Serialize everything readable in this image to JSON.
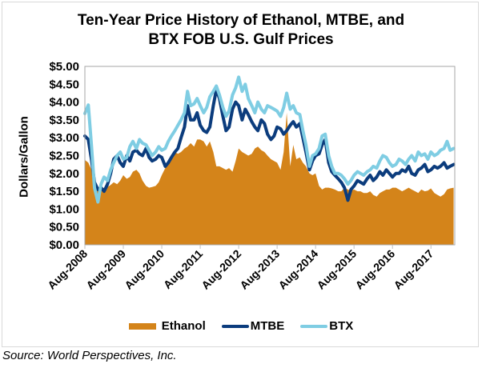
{
  "chart_data": {
    "type": "line",
    "title_lines": [
      "Ten-Year Price History of Ethanol, MTBE, and",
      "BTX FOB U.S. Gulf Prices"
    ],
    "title": "Ten-Year Price History of Ethanol, MTBE, and BTX FOB U.S. Gulf Prices",
    "xlabel": "",
    "ylabel": "Dollars/Gallon",
    "ylim": [
      0,
      5
    ],
    "xlim": [
      2008.58,
      2018.2
    ],
    "y_ticks": [
      "$0.00",
      "$0.50",
      "$1.00",
      "$1.50",
      "$2.00",
      "$2.50",
      "$3.00",
      "$3.50",
      "$4.00",
      "$4.50",
      "$5.00"
    ],
    "y_tick_values": [
      0,
      0.5,
      1.0,
      1.5,
      2.0,
      2.5,
      3.0,
      3.5,
      4.0,
      4.5,
      5.0
    ],
    "x_ticks": [
      "Aug-2008",
      "Aug-2009",
      "Aug-2010",
      "Aug-2011",
      "Aug-2012",
      "Aug-2013",
      "Aug-2014",
      "Aug-2015",
      "Aug-2016",
      "Aug-2017"
    ],
    "x_tick_values": [
      2008.58,
      2009.58,
      2010.58,
      2011.58,
      2012.58,
      2013.58,
      2014.58,
      2015.58,
      2016.58,
      2017.58
    ],
    "grid": false,
    "legend_position": "bottom",
    "colors": {
      "Ethanol": "#d4841a",
      "MTBE": "#0b3c7d",
      "BTX": "#7fcde3"
    },
    "series": [
      {
        "name": "Ethanol",
        "style": "area",
        "x": [
          2008.58,
          2008.67,
          2008.75,
          2008.83,
          2008.92,
          2009.0,
          2009.08,
          2009.17,
          2009.25,
          2009.33,
          2009.42,
          2009.5,
          2009.58,
          2009.67,
          2009.75,
          2009.83,
          2009.92,
          2010.0,
          2010.08,
          2010.17,
          2010.25,
          2010.33,
          2010.42,
          2010.5,
          2010.58,
          2010.67,
          2010.75,
          2010.83,
          2010.92,
          2011.0,
          2011.08,
          2011.17,
          2011.25,
          2011.33,
          2011.42,
          2011.5,
          2011.58,
          2011.67,
          2011.75,
          2011.83,
          2011.92,
          2012.0,
          2012.08,
          2012.17,
          2012.25,
          2012.33,
          2012.42,
          2012.5,
          2012.58,
          2012.67,
          2012.75,
          2012.83,
          2012.92,
          2013.0,
          2013.08,
          2013.17,
          2013.25,
          2013.33,
          2013.42,
          2013.5,
          2013.58,
          2013.67,
          2013.75,
          2013.83,
          2013.92,
          2014.0,
          2014.08,
          2014.17,
          2014.25,
          2014.33,
          2014.42,
          2014.5,
          2014.58,
          2014.67,
          2014.75,
          2014.83,
          2014.92,
          2015.0,
          2015.08,
          2015.17,
          2015.25,
          2015.33,
          2015.42,
          2015.5,
          2015.58,
          2015.67,
          2015.75,
          2015.83,
          2015.92,
          2016.0,
          2016.08,
          2016.17,
          2016.25,
          2016.33,
          2016.42,
          2016.5,
          2016.58,
          2016.67,
          2016.75,
          2016.83,
          2016.92,
          2017.0,
          2017.08,
          2017.17,
          2017.25,
          2017.33,
          2017.42,
          2017.5,
          2017.58,
          2017.67,
          2017.75,
          2017.83,
          2017.92,
          2018.0,
          2018.08,
          2018.17
        ],
        "values": [
          2.38,
          2.3,
          2.1,
          1.75,
          1.6,
          1.55,
          1.6,
          1.62,
          1.68,
          1.75,
          1.7,
          1.8,
          1.95,
          1.85,
          1.9,
          2.05,
          2.1,
          2.0,
          1.8,
          1.65,
          1.6,
          1.62,
          1.65,
          1.75,
          1.95,
          2.15,
          2.3,
          2.45,
          2.6,
          2.55,
          2.6,
          2.7,
          2.75,
          2.85,
          2.75,
          2.95,
          2.95,
          2.9,
          2.75,
          2.9,
          2.6,
          2.2,
          2.2,
          2.15,
          2.1,
          2.15,
          2.05,
          2.35,
          2.7,
          2.6,
          2.55,
          2.5,
          2.55,
          2.7,
          2.75,
          2.65,
          2.6,
          2.5,
          2.4,
          2.35,
          2.3,
          2.1,
          2.6,
          3.7,
          2.2,
          2.8,
          2.4,
          2.45,
          2.3,
          2.2,
          2.0,
          1.95,
          2.0,
          1.65,
          1.55,
          1.6,
          1.6,
          1.58,
          1.55,
          1.5,
          1.5,
          1.6,
          1.55,
          1.52,
          1.55,
          1.5,
          1.5,
          1.45,
          1.45,
          1.5,
          1.4,
          1.35,
          1.45,
          1.5,
          1.55,
          1.55,
          1.6,
          1.6,
          1.55,
          1.5,
          1.55,
          1.6,
          1.55,
          1.5,
          1.45,
          1.55,
          1.5,
          1.52,
          1.58,
          1.45,
          1.4,
          1.35,
          1.42,
          1.55,
          1.58,
          1.6
        ]
      },
      {
        "name": "MTBE",
        "style": "line",
        "x": [
          2008.58,
          2008.67,
          2008.75,
          2008.83,
          2008.92,
          2009.0,
          2009.08,
          2009.17,
          2009.25,
          2009.33,
          2009.42,
          2009.5,
          2009.58,
          2009.67,
          2009.75,
          2009.83,
          2009.92,
          2010.0,
          2010.08,
          2010.17,
          2010.25,
          2010.33,
          2010.42,
          2010.5,
          2010.58,
          2010.67,
          2010.75,
          2010.83,
          2010.92,
          2011.0,
          2011.08,
          2011.17,
          2011.25,
          2011.33,
          2011.42,
          2011.5,
          2011.58,
          2011.67,
          2011.75,
          2011.83,
          2011.92,
          2012.0,
          2012.08,
          2012.17,
          2012.25,
          2012.33,
          2012.42,
          2012.5,
          2012.58,
          2012.67,
          2012.75,
          2012.83,
          2012.92,
          2013.0,
          2013.08,
          2013.17,
          2013.25,
          2013.33,
          2013.42,
          2013.5,
          2013.58,
          2013.67,
          2013.75,
          2013.83,
          2013.92,
          2014.0,
          2014.08,
          2014.17,
          2014.25,
          2014.33,
          2014.42,
          2014.5,
          2014.58,
          2014.67,
          2014.75,
          2014.83,
          2014.92,
          2015.0,
          2015.08,
          2015.17,
          2015.25,
          2015.33,
          2015.42,
          2015.5,
          2015.58,
          2015.67,
          2015.75,
          2015.83,
          2015.92,
          2016.0,
          2016.08,
          2016.17,
          2016.25,
          2016.33,
          2016.42,
          2016.5,
          2016.58,
          2016.67,
          2016.75,
          2016.83,
          2016.92,
          2017.0,
          2017.08,
          2017.17,
          2017.25,
          2017.33,
          2017.42,
          2017.5,
          2017.58,
          2017.67,
          2017.75,
          2017.83,
          2017.92,
          2018.0,
          2018.08,
          2018.17
        ],
        "values": [
          3.05,
          2.95,
          2.4,
          1.75,
          1.55,
          1.6,
          1.5,
          1.7,
          2.0,
          2.4,
          2.5,
          2.3,
          2.2,
          2.5,
          2.35,
          2.6,
          2.65,
          2.55,
          2.5,
          2.7,
          2.45,
          2.35,
          2.4,
          2.5,
          2.45,
          2.2,
          2.3,
          2.45,
          2.6,
          2.7,
          3.0,
          3.3,
          3.9,
          3.5,
          3.5,
          3.7,
          3.35,
          3.2,
          3.15,
          3.3,
          3.9,
          4.35,
          4.1,
          3.6,
          3.2,
          3.3,
          3.8,
          4.0,
          3.9,
          3.5,
          3.8,
          3.65,
          3.45,
          3.3,
          3.2,
          3.5,
          3.4,
          3.1,
          2.95,
          3.05,
          3.3,
          3.25,
          3.1,
          3.2,
          3.35,
          3.45,
          3.3,
          3.4,
          3.0,
          2.6,
          2.1,
          2.35,
          2.5,
          2.55,
          2.8,
          2.95,
          2.3,
          2.05,
          1.95,
          1.85,
          1.75,
          1.6,
          1.25,
          1.55,
          1.65,
          1.8,
          1.75,
          1.7,
          1.85,
          1.95,
          1.8,
          1.9,
          2.05,
          1.95,
          2.1,
          2.0,
          1.9,
          2.0,
          2.0,
          2.1,
          2.05,
          2.2,
          2.0,
          1.95,
          2.1,
          2.15,
          2.25,
          2.05,
          2.1,
          2.2,
          2.15,
          2.2,
          2.3,
          2.15,
          2.2,
          2.25
        ]
      },
      {
        "name": "BTX",
        "style": "line",
        "x": [
          2008.58,
          2008.67,
          2008.75,
          2008.83,
          2008.92,
          2009.0,
          2009.08,
          2009.17,
          2009.25,
          2009.33,
          2009.42,
          2009.5,
          2009.58,
          2009.67,
          2009.75,
          2009.83,
          2009.92,
          2010.0,
          2010.08,
          2010.17,
          2010.25,
          2010.33,
          2010.42,
          2010.5,
          2010.58,
          2010.67,
          2010.75,
          2010.83,
          2010.92,
          2011.0,
          2011.08,
          2011.17,
          2011.25,
          2011.33,
          2011.42,
          2011.5,
          2011.58,
          2011.67,
          2011.75,
          2011.83,
          2011.92,
          2012.0,
          2012.08,
          2012.17,
          2012.25,
          2012.33,
          2012.42,
          2012.5,
          2012.58,
          2012.67,
          2012.75,
          2012.83,
          2012.92,
          2013.0,
          2013.08,
          2013.17,
          2013.25,
          2013.33,
          2013.42,
          2013.5,
          2013.58,
          2013.67,
          2013.75,
          2013.83,
          2013.92,
          2014.0,
          2014.08,
          2014.17,
          2014.25,
          2014.33,
          2014.42,
          2014.5,
          2014.58,
          2014.67,
          2014.75,
          2014.83,
          2014.92,
          2015.0,
          2015.08,
          2015.17,
          2015.25,
          2015.33,
          2015.42,
          2015.5,
          2015.58,
          2015.67,
          2015.75,
          2015.83,
          2015.92,
          2016.0,
          2016.08,
          2016.17,
          2016.25,
          2016.33,
          2016.42,
          2016.5,
          2016.58,
          2016.67,
          2016.75,
          2016.83,
          2016.92,
          2017.0,
          2017.08,
          2017.17,
          2017.25,
          2017.33,
          2017.42,
          2017.5,
          2017.58,
          2017.67,
          2017.75,
          2017.83,
          2017.92,
          2018.0,
          2018.08,
          2018.17
        ],
        "values": [
          3.68,
          3.92,
          2.8,
          1.6,
          1.2,
          1.7,
          1.9,
          1.8,
          2.1,
          2.3,
          2.5,
          2.6,
          2.4,
          2.45,
          2.75,
          2.9,
          2.7,
          2.95,
          2.85,
          2.8,
          2.65,
          2.5,
          2.6,
          2.75,
          2.65,
          2.7,
          2.9,
          3.05,
          3.2,
          3.35,
          3.5,
          3.7,
          4.3,
          3.9,
          3.95,
          4.1,
          3.9,
          3.7,
          3.85,
          4.15,
          4.3,
          4.45,
          4.2,
          3.85,
          3.6,
          3.75,
          4.2,
          4.4,
          4.7,
          4.3,
          4.5,
          4.1,
          3.9,
          3.7,
          4.0,
          3.8,
          3.7,
          3.9,
          3.85,
          3.8,
          3.75,
          3.6,
          3.85,
          4.25,
          3.8,
          3.9,
          3.7,
          3.65,
          3.2,
          2.8,
          2.2,
          2.5,
          2.55,
          2.7,
          3.05,
          3.1,
          2.5,
          2.2,
          2.0,
          2.0,
          1.95,
          1.85,
          1.7,
          1.8,
          1.95,
          2.05,
          2.0,
          1.95,
          2.05,
          2.1,
          2.2,
          2.15,
          2.35,
          2.5,
          2.45,
          2.3,
          2.2,
          2.25,
          2.4,
          2.35,
          2.25,
          2.4,
          2.5,
          2.35,
          2.6,
          2.5,
          2.55,
          2.4,
          2.6,
          2.5,
          2.55,
          2.65,
          2.7,
          2.9,
          2.65,
          2.7
        ]
      }
    ]
  },
  "legend": {
    "items": [
      {
        "label": "Ethanol"
      },
      {
        "label": "MTBE"
      },
      {
        "label": "BTX"
      }
    ]
  },
  "source": "Source: World Perspectives, Inc."
}
